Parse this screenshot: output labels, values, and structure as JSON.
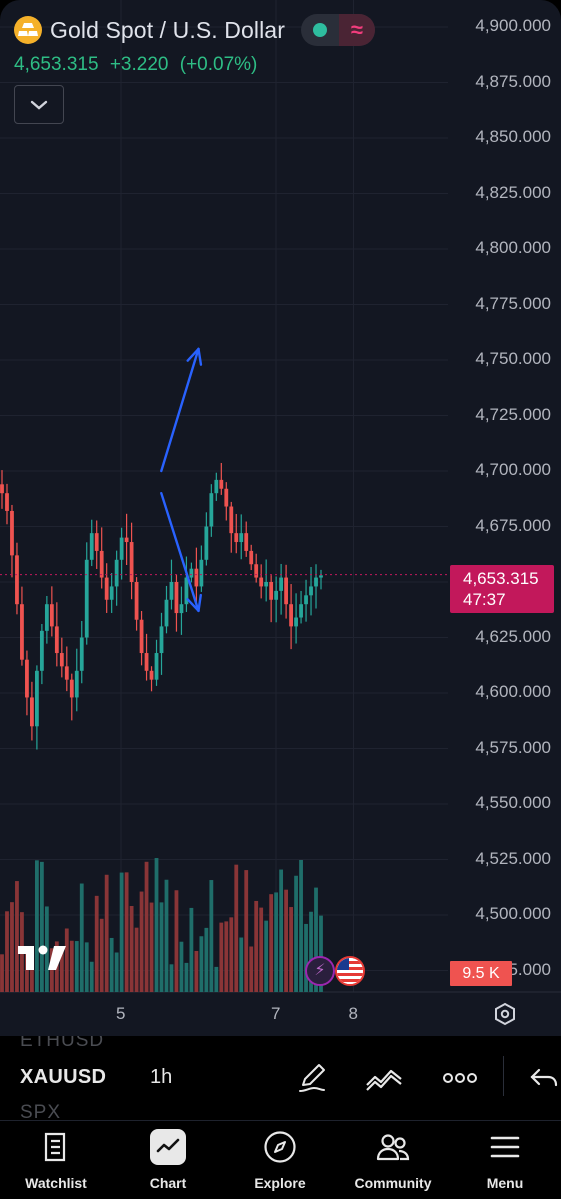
{
  "header": {
    "title": "Gold Spot / U.S. Dollar",
    "last_price": "4,653.315",
    "change": "+3.220",
    "change_pct": "(+0.07%)",
    "logo_icon": "gold-bars-icon",
    "status_wave": "≈"
  },
  "price_axis": [
    "4,900.000",
    "4,875.000",
    "4,850.000",
    "4,825.000",
    "4,800.000",
    "4,775.000",
    "4,750.000",
    "4,725.000",
    "4,700.000",
    "4,675.000",
    "4,650.000",
    "4,625.000",
    "4,600.000",
    "4,575.000",
    "4,550.000",
    "4,525.000",
    "4,500.000",
    "4,475.000"
  ],
  "current_price": {
    "price": "4,653.315",
    "countdown": "47:37"
  },
  "volume_badge": "9.5 K",
  "time_axis": [
    {
      "label": "5",
      "value": 5
    },
    {
      "label": "7",
      "value": 7
    },
    {
      "label": "8",
      "value": 8
    }
  ],
  "toolbar": {
    "symbol": "XAUUSD",
    "interval": "1h",
    "ghost_above": "ETHUSD",
    "ghost_below": "SPX"
  },
  "nav": [
    {
      "label": "Watchlist",
      "icon": "watchlist-icon"
    },
    {
      "label": "Chart",
      "icon": "chart-icon",
      "active": true
    },
    {
      "label": "Explore",
      "icon": "compass-icon"
    },
    {
      "label": "Community",
      "icon": "community-icon"
    },
    {
      "label": "Menu",
      "icon": "menu-icon"
    }
  ],
  "colors": {
    "up": "#26a69a",
    "down": "#ef5350",
    "background": "#131722",
    "current_price_bg": "#c2185b",
    "annotation_arrow": "#2962ff"
  },
  "chart_data": {
    "type": "candlestick",
    "ylim": [
      4475,
      4900
    ],
    "current_price": 4653.315,
    "annotations": [
      {
        "type": "arrow",
        "from": [
          5.52,
          4700
        ],
        "to": [
          6.0,
          4755
        ]
      },
      {
        "type": "arrow",
        "from": [
          5.52,
          4690
        ],
        "to": [
          6.0,
          4637
        ]
      }
    ]
  }
}
